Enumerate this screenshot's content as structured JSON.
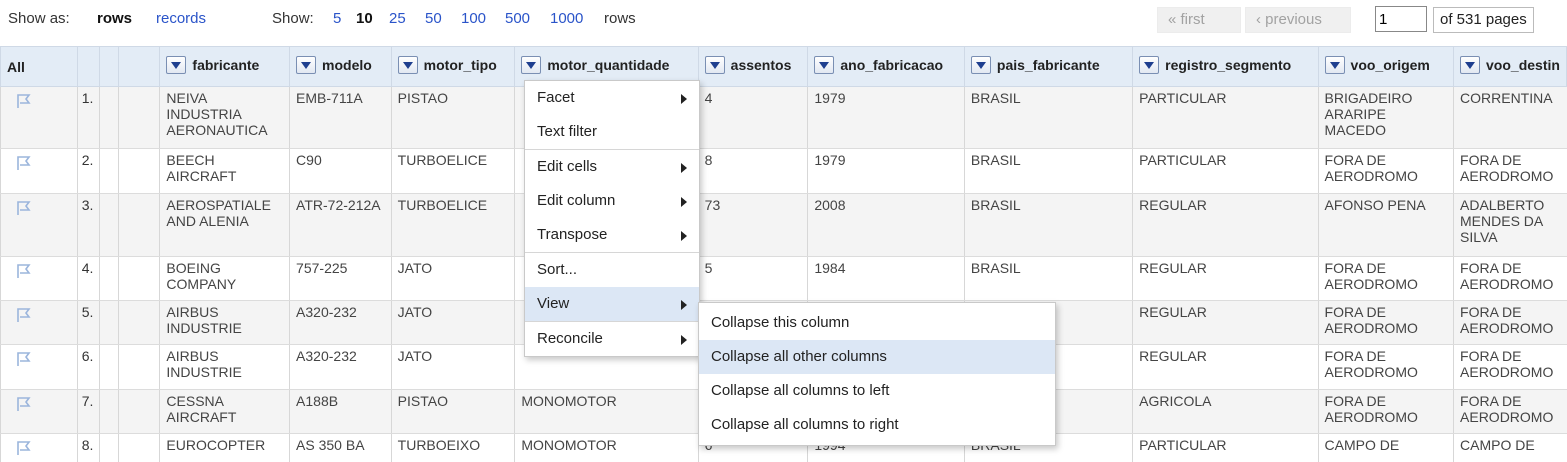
{
  "top": {
    "show_as_label": "Show as:",
    "mode_rows": "rows",
    "mode_records": "records",
    "show_label": "Show:",
    "page_sizes": [
      "5",
      "10",
      "25",
      "50",
      "100",
      "500",
      "1000"
    ],
    "rows_suffix": "rows",
    "first": "« first",
    "previous": "‹ previous",
    "page_value": "1",
    "of_pages": "of 531 pages"
  },
  "table": {
    "all_label": "All",
    "columns": [
      "fabricante",
      "modelo",
      "motor_tipo",
      "motor_quantidade",
      "assentos",
      "ano_fabricacao",
      "pais_fabricante",
      "registro_segmento",
      "voo_origem",
      "voo_destin"
    ],
    "rows": [
      {
        "idx": "1.",
        "cells": [
          "NEIVA INDUSTRIA AERONAUTICA",
          "EMB-711A",
          "PISTAO",
          "",
          "4",
          "1979",
          "BRASIL",
          "PARTICULAR",
          "BRIGADEIRO ARARIPE MACEDO",
          "CORRENTINA"
        ]
      },
      {
        "idx": "2.",
        "cells": [
          "BEECH AIRCRAFT",
          "C90",
          "TURBOELICE",
          "",
          "8",
          "1979",
          "BRASIL",
          "PARTICULAR",
          "FORA DE AERODROMO",
          "FORA DE AERODROMO"
        ]
      },
      {
        "idx": "3.",
        "cells": [
          "AEROSPATIALE AND ALENIA",
          "ATR-72-212A",
          "TURBOELICE",
          "",
          "73",
          "2008",
          "BRASIL",
          "REGULAR",
          "AFONSO PENA",
          "ADALBERTO MENDES DA SILVA"
        ]
      },
      {
        "idx": "4.",
        "cells": [
          "BOEING COMPANY",
          "757-225",
          "JATO",
          "",
          "5",
          "1984",
          "BRASIL",
          "REGULAR",
          "FORA DE AERODROMO",
          "FORA DE AERODROMO"
        ]
      },
      {
        "idx": "5.",
        "cells": [
          "AIRBUS INDUSTRIE",
          "A320-232",
          "JATO",
          "",
          "",
          "",
          "",
          "REGULAR",
          "FORA DE AERODROMO",
          "FORA DE AERODROMO"
        ]
      },
      {
        "idx": "6.",
        "cells": [
          "AIRBUS INDUSTRIE",
          "A320-232",
          "JATO",
          "",
          "",
          "",
          "",
          "REGULAR",
          "FORA DE AERODROMO",
          "FORA DE AERODROMO"
        ]
      },
      {
        "idx": "7.",
        "cells": [
          "CESSNA AIRCRAFT",
          "A188B",
          "PISTAO",
          "MONOMOTOR",
          "",
          "",
          "",
          "AGRICOLA",
          "FORA DE AERODROMO",
          "FORA DE AERODROMO"
        ]
      },
      {
        "idx": "8.",
        "cells": [
          "EUROCOPTER",
          "AS 350 BA",
          "TURBOEIXO",
          "MONOMOTOR",
          "6",
          "1994",
          "BRASIL",
          "PARTICULAR",
          "CAMPO DE",
          "CAMPO DE"
        ]
      }
    ]
  },
  "column_menu": {
    "items": [
      "Facet",
      "Text filter",
      "Edit cells",
      "Edit column",
      "Transpose",
      "Sort...",
      "View",
      "Reconcile"
    ]
  },
  "view_submenu": {
    "items": [
      "Collapse this column",
      "Collapse all other columns",
      "Collapse all columns to left",
      "Collapse all columns to right"
    ]
  },
  "colors": {
    "link": "#2a54c9",
    "header_bg": "#e3ecf6",
    "menu_highlight": "#dce7f5",
    "row_alt": "#f4f4f4"
  },
  "icons": {
    "column_menu": "triangle-down-icon",
    "row_flag": "flag-icon",
    "submenu_arrow": "triangle-right-icon"
  }
}
